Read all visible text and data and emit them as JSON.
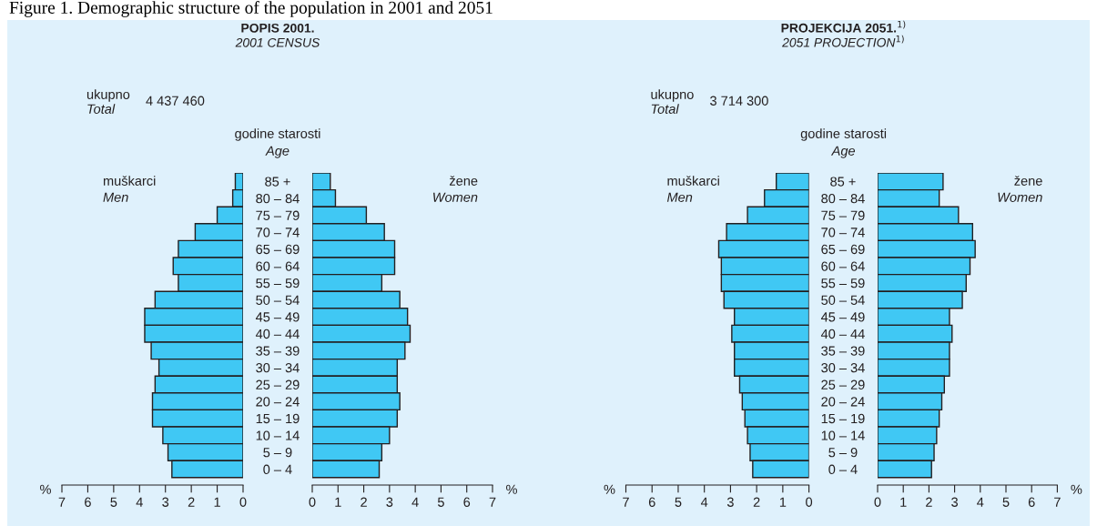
{
  "chart_data": [
    {
      "type": "bar",
      "orientation": "horizontal",
      "title": "POPIS 2001.",
      "subtitle": "2001 CENSUS",
      "xlabel": "%",
      "annotations": [
        "ukupno",
        "Total",
        "4 437 460",
        "godine starosti",
        "Age",
        "Figure 1. Demographic structure of the population in 2001 and 2051"
      ],
      "categories": [
        null,
        null,
        null,
        null,
        null,
        null,
        null,
        null,
        null,
        null,
        null,
        null,
        null,
        null,
        null,
        null,
        null,
        null
      ],
      "series": [
        {
          "name": "muškarci\nMen",
          "color": "#40c8f4",
          "values": [
            0.3,
            0.4,
            1.0,
            1.85,
            2.5,
            2.7,
            2.5,
            3.4,
            3.8,
            3.8,
            3.55,
            3.25,
            3.4,
            3.5,
            3.5,
            3.1,
            2.9,
            2.75
          ]
        }
      ],
      "xlim": [
        7,
        0
      ],
      "xticks": [
        7,
        6,
        5,
        4,
        3,
        2,
        1,
        0
      ],
      "grid": false,
      "legend": false
    },
    {
      "type": "bar",
      "orientation": "horizontal",
      "xlabel": "%",
      "categories": [
        "85 +",
        "80 – 84",
        "75 – 79",
        "70 – 74",
        "65 – 69",
        "60 – 64",
        "55 – 59",
        "50 – 54",
        "45 – 49",
        "40 – 44",
        "35 – 39",
        "30 – 34",
        "25 – 29",
        "20 – 24",
        "15 – 19",
        "10 – 14",
        "5 – 9",
        "0 – 4"
      ],
      "series": [
        {
          "name": "žene\nWomen",
          "color": "#40c8f4",
          "values": [
            0.7,
            0.9,
            2.1,
            2.8,
            3.2,
            3.2,
            2.7,
            3.4,
            3.7,
            3.8,
            3.6,
            3.3,
            3.3,
            3.4,
            3.3,
            3.0,
            2.7,
            2.6
          ]
        }
      ],
      "xlim": [
        0,
        7
      ],
      "xticks": [
        0,
        1,
        2,
        3,
        4,
        5,
        6,
        7
      ],
      "grid": false,
      "legend": false
    },
    {
      "type": "bar",
      "orientation": "horizontal",
      "title": "PROJEKCIJA 2051.$^{1)}$",
      "subtitle": "2051 PROJECTION$^{1)}$",
      "xlabel": "%",
      "annotations": [
        "ukupno",
        "Total",
        "3 714 300",
        "godine starosti",
        "Age"
      ],
      "categories": [
        null,
        null,
        null,
        null,
        null,
        null,
        null,
        null,
        null,
        null,
        null,
        null,
        null,
        null,
        null,
        null,
        null,
        null
      ],
      "series": [
        {
          "name": "muškarci\nMen",
          "color": "#40c8f4",
          "values": [
            1.25,
            1.7,
            2.35,
            3.15,
            3.45,
            3.35,
            3.35,
            3.25,
            2.85,
            2.95,
            2.85,
            2.85,
            2.65,
            2.55,
            2.45,
            2.35,
            2.25,
            2.15
          ]
        }
      ],
      "xlim": [
        7,
        0
      ],
      "xticks": [
        7,
        6,
        5,
        4,
        3,
        2,
        1,
        0
      ],
      "grid": false,
      "legend": false
    },
    {
      "type": "bar",
      "orientation": "horizontal",
      "xlabel": "%",
      "categories": [
        "85 +",
        "80 – 84",
        "75 – 79",
        "70 – 74",
        "65 – 69",
        "60 – 64",
        "55 – 59",
        "50 – 54",
        "45 – 49",
        "40 – 44",
        "35 – 39",
        "30 – 34",
        "25 – 29",
        "20 – 24",
        "15 – 19",
        "10 – 14",
        "5 – 9",
        "0 – 4"
      ],
      "series": [
        {
          "name": "žene\nWomen",
          "color": "#40c8f4",
          "values": [
            2.55,
            2.4,
            3.15,
            3.7,
            3.8,
            3.6,
            3.45,
            3.3,
            2.8,
            2.9,
            2.8,
            2.8,
            2.6,
            2.5,
            2.4,
            2.3,
            2.2,
            2.1
          ]
        }
      ],
      "xlim": [
        0,
        7
      ],
      "xticks": [
        0,
        1,
        2,
        3,
        4,
        5,
        6,
        7
      ],
      "grid": false,
      "legend": false
    }
  ]
}
